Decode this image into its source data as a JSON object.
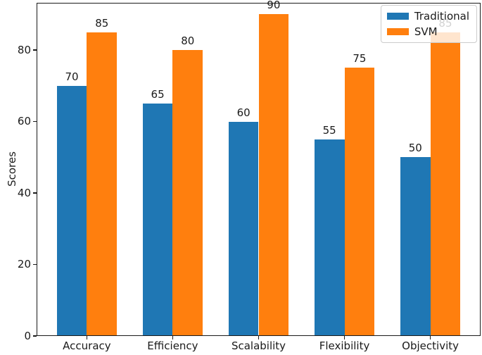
{
  "chart_data": {
    "type": "bar",
    "title": "",
    "xlabel": "",
    "ylabel": "Scores",
    "categories": [
      "Accuracy",
      "Efficiency",
      "Scalability",
      "Flexibility",
      "Objectivity"
    ],
    "series": [
      {
        "name": "Traditional",
        "color": "#1f77b4",
        "values": [
          70,
          65,
          60,
          55,
          50
        ]
      },
      {
        "name": "SVM",
        "color": "#ff7f0e",
        "values": [
          85,
          80,
          90,
          75,
          85
        ]
      }
    ],
    "bar_value_labels": {
      "Traditional": [
        "70",
        "65",
        "60",
        "55",
        "50"
      ],
      "SVM": [
        "85",
        "80",
        "90",
        "75",
        "85"
      ]
    },
    "yticks": [
      "0",
      "20",
      "40",
      "60",
      "80"
    ],
    "ytick_values": [
      0,
      20,
      40,
      60,
      80
    ],
    "ylim": [
      0,
      93.2
    ],
    "bar_width_units": 0.35,
    "x_margin_units": 0.235,
    "grid": false,
    "legend": {
      "position": "upper right",
      "entries": [
        "Traditional",
        "SVM"
      ],
      "background": "rgba(255,255,255,0.8)",
      "border_color": "#cccccc"
    }
  },
  "colors": {
    "background": "#ffffff",
    "axis": "#1a1a1a",
    "text": "#1a1a1a",
    "series_blue": "#1f77b4",
    "series_orange": "#ff7f0e"
  }
}
